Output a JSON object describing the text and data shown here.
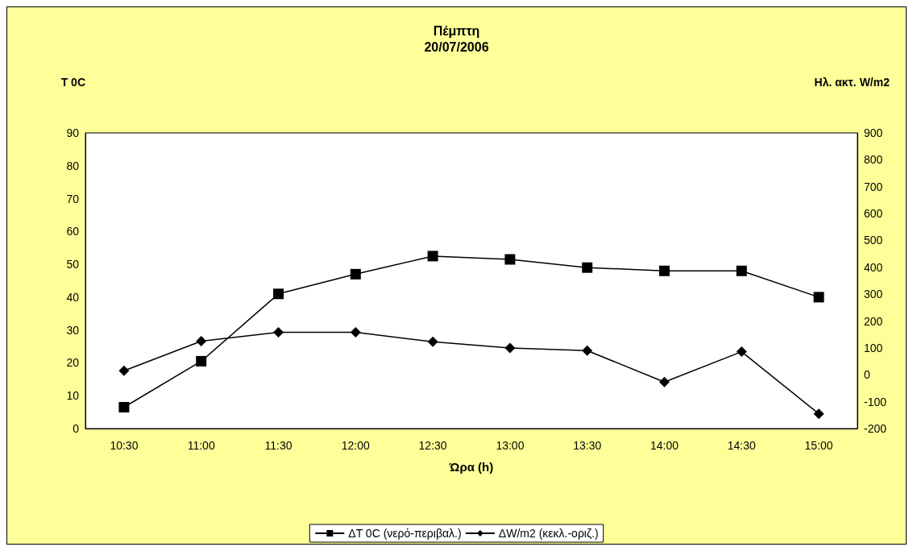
{
  "chart_data": {
    "type": "line",
    "title": "Πέμπτη",
    "subtitle": "20/07/2006",
    "xlabel": "Ώρα (h)",
    "ylabel": "T 0C",
    "y2label": "Ηλ. ακτ. W/m2",
    "categories": [
      "10:30",
      "11:00",
      "11:30",
      "12:00",
      "12:30",
      "13:00",
      "13:30",
      "14:00",
      "14:30",
      "15:00"
    ],
    "series": [
      {
        "name": "ΔT 0C (νερό-περιβαλ.)",
        "color": "#000000",
        "marker": "square",
        "values": [
          6.5,
          20.5,
          41,
          47,
          52.5,
          51.5,
          49,
          48,
          48,
          40
        ]
      },
      {
        "name": "ΔW/m2 (κεκλ.-οριζ.)",
        "color": "#000000",
        "marker": "diamond",
        "axis": "y2",
        "values": [
          15,
          125,
          158,
          158,
          123,
          100,
          90,
          -27,
          86,
          -145
        ]
      }
    ],
    "ylim": [
      0,
      90
    ],
    "yticks": [
      0,
      10,
      20,
      30,
      40,
      50,
      60,
      70,
      80,
      90
    ],
    "y2lim": [
      -200,
      900
    ],
    "y2ticks": [
      -200,
      -100,
      0,
      100,
      200,
      300,
      400,
      500,
      600,
      700,
      800,
      900
    ],
    "grid": false,
    "legend": "bottom",
    "line_style": "solid"
  }
}
